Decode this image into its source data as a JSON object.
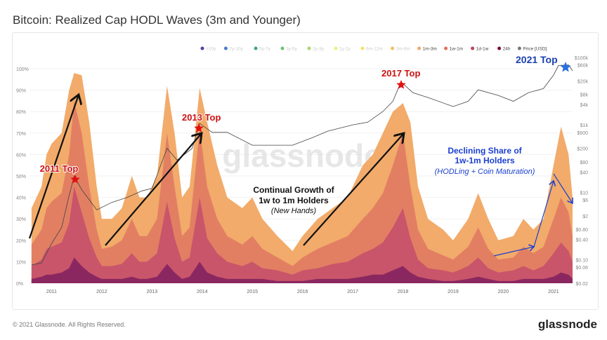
{
  "title": "Bitcoin: Realized Cap HODL Waves (3m and Younger)",
  "footer": "© 2021 Glassnode. All Rights Reserved.",
  "brand": "glassnode",
  "watermark": "glassnode",
  "chart_data": {
    "type": "area",
    "stacked": true,
    "xlim": [
      2010.56,
      2021.38
    ],
    "ylim": [
      0,
      100
    ],
    "x_ticks": [
      "2011",
      "2012",
      "2013",
      "2014",
      "2015",
      "2016",
      "2017",
      "2018",
      "2019",
      "2020",
      "2021"
    ],
    "y_ticks": [
      "0%",
      "10%",
      "20%",
      "30%",
      "40%",
      "50%",
      "60%",
      "70%",
      "80%",
      "90%",
      "100%"
    ],
    "y2_ticks": [
      "$0.02",
      "$0.06",
      "$0.10",
      "$0.40",
      "$0.80",
      "$2",
      "$6",
      "$10",
      "$40",
      "$80",
      "$200",
      "$600",
      "$1k",
      "$4k",
      "$8k",
      "$20k",
      "$60k",
      "$100k"
    ],
    "y2_scale": "log",
    "legend_position": "top-right",
    "legend": [
      {
        "name": ">10y",
        "color": "#5b3fa0"
      },
      {
        "name": "7y-10y",
        "color": "#4a7bc8"
      },
      {
        "name": "5y-7y",
        "color": "#3fa38a"
      },
      {
        "name": "3y-5y",
        "color": "#6cc37a"
      },
      {
        "name": "2y-3y",
        "color": "#a8d86a"
      },
      {
        "name": "1y-2y",
        "color": "#eef07a"
      },
      {
        "name": "6m-12m",
        "color": "#f5e06a"
      },
      {
        "name": "3m-6m",
        "color": "#f0c060"
      },
      {
        "name": "1m-3m",
        "color": "#f0a868"
      },
      {
        "name": "1w-1m",
        "color": "#e07058"
      },
      {
        "name": "1d-1w",
        "color": "#c0405a"
      },
      {
        "name": "24h",
        "color": "#800a40"
      },
      {
        "name": "Price [USD]",
        "color": "#777777"
      }
    ],
    "x": [
      2010.6,
      2010.8,
      2010.9,
      2011.0,
      2011.2,
      2011.35,
      2011.45,
      2011.6,
      2011.75,
      2011.9,
      2012.0,
      2012.2,
      2012.4,
      2012.6,
      2012.75,
      2012.9,
      2013.1,
      2013.3,
      2013.45,
      2013.6,
      2013.75,
      2013.95,
      2014.1,
      2014.3,
      2014.5,
      2014.8,
      2015.0,
      2015.2,
      2015.5,
      2015.8,
      2016.0,
      2016.3,
      2016.6,
      2016.9,
      2017.2,
      2017.4,
      2017.6,
      2017.8,
      2018.0,
      2018.15,
      2018.3,
      2018.5,
      2018.8,
      2019.0,
      2019.3,
      2019.5,
      2019.7,
      2019.9,
      2020.2,
      2020.4,
      2020.6,
      2020.8,
      2021.0,
      2021.15,
      2021.3,
      2021.38
    ],
    "series": [
      {
        "name": "1m-3m",
        "color": "#f2ab6a",
        "values": [
          35,
          45,
          60,
          65,
          70,
          90,
          98,
          97,
          75,
          45,
          30,
          30,
          35,
          50,
          40,
          40,
          50,
          92,
          70,
          40,
          45,
          91,
          75,
          55,
          40,
          35,
          40,
          30,
          22,
          15,
          22,
          30,
          35,
          40,
          55,
          60,
          70,
          80,
          84,
          75,
          45,
          30,
          25,
          20,
          30,
          42,
          30,
          20,
          22,
          30,
          25,
          30,
          55,
          73,
          60,
          40
        ]
      },
      {
        "name": "1w-1m",
        "color": "#e27f63",
        "values": [
          18,
          25,
          35,
          38,
          42,
          60,
          85,
          70,
          45,
          25,
          16,
          17,
          20,
          30,
          22,
          22,
          30,
          70,
          45,
          22,
          26,
          72,
          45,
          30,
          22,
          18,
          22,
          16,
          12,
          8,
          12,
          16,
          19,
          22,
          30,
          35,
          42,
          55,
          70,
          45,
          25,
          16,
          13,
          11,
          17,
          26,
          16,
          11,
          12,
          17,
          14,
          17,
          30,
          40,
          33,
          22
        ]
      },
      {
        "name": "1d-1w",
        "color": "#c9556a",
        "values": [
          8,
          11,
          16,
          17,
          19,
          28,
          45,
          33,
          21,
          12,
          8,
          8,
          9,
          14,
          10,
          10,
          14,
          38,
          21,
          10,
          12,
          40,
          21,
          14,
          10,
          8,
          10,
          7,
          6,
          4,
          6,
          7,
          9,
          10,
          14,
          16,
          19,
          26,
          35,
          21,
          11,
          7,
          6,
          5,
          8,
          12,
          7,
          5,
          6,
          8,
          6,
          8,
          14,
          19,
          15,
          10
        ]
      },
      {
        "name": "24h",
        "color": "#8b2760",
        "values": [
          2,
          3,
          4,
          4,
          5,
          7,
          12,
          8,
          5,
          3,
          2,
          2,
          2,
          3,
          2,
          2,
          3,
          9,
          5,
          2,
          3,
          10,
          5,
          3,
          2,
          2,
          2,
          2,
          1,
          1,
          1,
          2,
          2,
          2,
          3,
          4,
          4,
          6,
          8,
          5,
          3,
          2,
          1,
          1,
          2,
          3,
          2,
          1,
          1,
          2,
          2,
          2,
          3,
          5,
          4,
          2
        ]
      }
    ],
    "price": {
      "name": "Price [USD]",
      "x": [
        2010.6,
        2010.8,
        2011.0,
        2011.2,
        2011.35,
        2011.45,
        2011.6,
        2011.9,
        2012.2,
        2012.5,
        2012.8,
        2013.0,
        2013.3,
        2013.5,
        2013.8,
        2013.95,
        2014.2,
        2014.5,
        2015.0,
        2015.5,
        2015.8,
        2016.2,
        2016.5,
        2017.0,
        2017.3,
        2017.6,
        2017.8,
        2017.96,
        2018.2,
        2018.5,
        2019.0,
        2019.3,
        2019.5,
        2019.9,
        2020.2,
        2020.5,
        2020.8,
        2021.0,
        2021.1,
        2021.3,
        2021.38
      ],
      "values": [
        0.07,
        0.08,
        0.3,
        0.9,
        8,
        30,
        12,
        3,
        5,
        7,
        11,
        13,
        200,
        90,
        200,
        1100,
        600,
        600,
        250,
        250,
        250,
        420,
        650,
        1000,
        1200,
        2500,
        5000,
        19000,
        9000,
        6500,
        3500,
        5000,
        11000,
        7500,
        5000,
        9000,
        12000,
        30000,
        58000,
        60000,
        40000
      ]
    },
    "annotations": [
      {
        "text": "2011 Top",
        "color": "#cc1111"
      },
      {
        "text": "2013 Top",
        "color": "#cc1111"
      },
      {
        "text": "2017 Top",
        "color": "#cc1111"
      },
      {
        "text": "2021 Top",
        "color": "#1a3fb0"
      },
      {
        "text": "Continual Growth of",
        "color": "#111111"
      },
      {
        "text": "1w to 1m Holders",
        "color": "#111111"
      },
      {
        "text": "(New Hands)",
        "color": "#111111"
      },
      {
        "text": "Declining Share of",
        "color": "#1a3fd0"
      },
      {
        "text": "1w-1m Holders",
        "color": "#1a3fd0"
      },
      {
        "text": "(HODLing + Coin Maturation)",
        "color": "#1a3fd0"
      }
    ]
  }
}
